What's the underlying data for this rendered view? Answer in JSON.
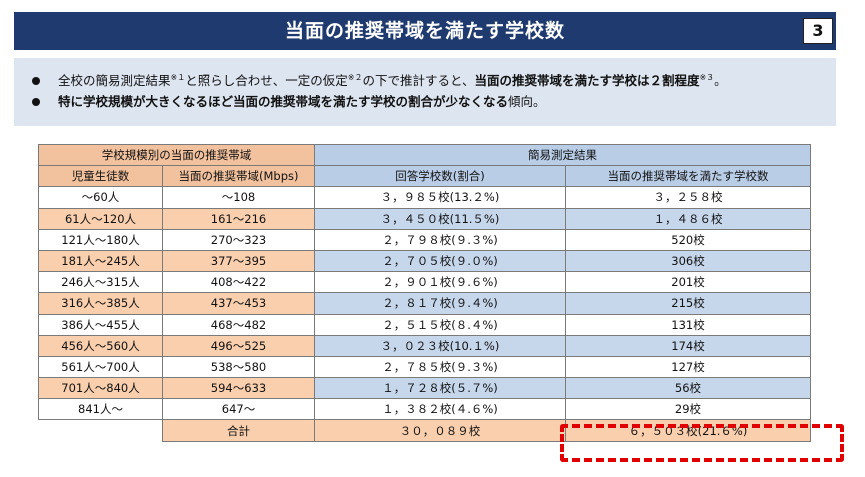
{
  "header": {
    "title": "当面の推奨帯域を満たす学校数",
    "page_number": "3"
  },
  "summary": {
    "bullet1": {
      "part1": "全校の簡易測定結果",
      "sup1": "※１",
      "part2": "と照らし合わせ、一定の仮定",
      "sup2": "※２",
      "part3": "の下で推計すると、",
      "bold": "当面の推奨帯域を満たす学校は２割程度",
      "sup3": "※３",
      "part4": "。"
    },
    "bullet2": {
      "bold": "特に学校規模が大きくなるほど当面の推奨帯域を満たす学校の割合が少なくなる",
      "part": "傾向。"
    }
  },
  "table": {
    "group_left": "学校規模別の当面の推奨帯域",
    "group_right": "簡易測定結果",
    "col1": "児童生徒数",
    "col2": "当面の推奨帯域(Mbps)",
    "col3": "回答学校数(割合)",
    "col4": "当面の推奨帯域を満たす学校数",
    "rows": [
      [
        "～60人",
        "～108",
        "３，９８５校(13.２%)",
        "３，２５８校"
      ],
      [
        "61人～120人",
        "161～216",
        "３，４５０校(11.５%)",
        "１，４８６校"
      ],
      [
        "121人～180人",
        "270～323",
        "２，７９８校(９.３%)",
        "520校"
      ],
      [
        "181人～245人",
        "377～395",
        "２，７０５校(９.０%)",
        "306校"
      ],
      [
        "246人～315人",
        "408～422",
        "２，９０１校(９.６%)",
        "201校"
      ],
      [
        "316人～385人",
        "437～453",
        "２，８１７校(９.４%)",
        "215校"
      ],
      [
        "386人～455人",
        "468～482",
        "２，５１５校(８.４%)",
        "131校"
      ],
      [
        "456人～560人",
        "496～525",
        "３，０２３校(10.１%)",
        "174校"
      ],
      [
        "561人～700人",
        "538～580",
        "２，７８５校(９.３%)",
        "127校"
      ],
      [
        "701人～840人",
        "594～633",
        "１，７２８校(５.７%)",
        "56校"
      ],
      [
        "841人～",
        "647～",
        "１，３８２校(４.６%)",
        "29校"
      ]
    ],
    "total_label": "合計",
    "total_count": "３０，０８９校",
    "total_meet": "６，５０３校(21.６%)"
  },
  "colors": {
    "title_bg": "#1f3a6e",
    "summary_bg": "#dde5f0",
    "orange_cell": "#f9cfae",
    "blue_cell": "#c6d7ec",
    "highlight": "#e00000"
  }
}
